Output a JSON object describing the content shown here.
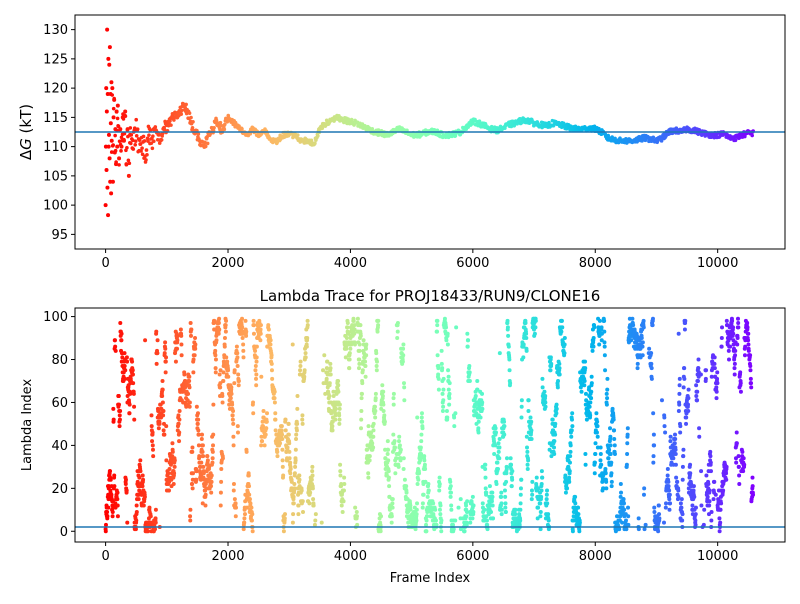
{
  "chart_data": [
    {
      "type": "scatter",
      "title": "",
      "xlabel": "",
      "ylabel_prefix": "Δ",
      "ylabel_var": "G",
      "ylabel_suffix": " (kT)",
      "xlim": [
        -500,
        11100
      ],
      "ylim": [
        92.5,
        132.5
      ],
      "x_ticks": [
        0,
        2000,
        4000,
        6000,
        8000,
        10000
      ],
      "x_tick_labels": [
        "0",
        "2000",
        "4000",
        "6000",
        "8000",
        "10000"
      ],
      "y_ticks": [
        95,
        100,
        105,
        110,
        115,
        120,
        125,
        130
      ],
      "y_tick_labels": [
        "95",
        "100",
        "105",
        "110",
        "115",
        "120",
        "125",
        "130"
      ],
      "hline": 112.5,
      "colormap": "rainbow",
      "trace_points": [
        [
          0,
          100
        ],
        [
          5,
          110
        ],
        [
          10,
          120
        ],
        [
          15,
          106
        ],
        [
          20,
          116
        ],
        [
          25,
          130
        ],
        [
          30,
          103
        ],
        [
          35,
          119
        ],
        [
          40,
          98.3
        ],
        [
          45,
          125
        ],
        [
          50,
          110
        ],
        [
          55,
          112
        ],
        [
          60,
          124
        ],
        [
          65,
          108
        ],
        [
          70,
          127
        ],
        [
          75,
          104
        ],
        [
          80,
          119
        ],
        [
          85,
          114
        ],
        [
          90,
          102
        ],
        [
          95,
          121
        ],
        [
          100,
          111
        ],
        [
          110,
          120
        ],
        [
          120,
          104
        ],
        [
          130,
          115
        ],
        [
          140,
          118
        ],
        [
          150,
          109
        ],
        [
          160,
          113
        ],
        [
          170,
          107
        ],
        [
          180,
          116
        ],
        [
          190,
          110
        ],
        [
          200,
          117
        ],
        [
          220,
          108
        ],
        [
          240,
          113
        ],
        [
          260,
          110
        ],
        [
          280,
          115
        ],
        [
          300,
          111
        ],
        [
          320,
          116
        ],
        [
          340,
          107
        ],
        [
          360,
          113
        ],
        [
          380,
          105
        ],
        [
          400,
          112
        ],
        [
          450,
          110
        ],
        [
          500,
          113
        ],
        [
          550,
          109
        ],
        [
          600,
          111
        ],
        [
          650,
          108
        ],
        [
          700,
          112
        ],
        [
          750,
          111
        ],
        [
          800,
          113
        ],
        [
          850,
          112
        ],
        [
          900,
          111
        ],
        [
          950,
          114
        ],
        [
          1000,
          113
        ],
        [
          1100,
          115
        ],
        [
          1200,
          116
        ],
        [
          1300,
          117
        ],
        [
          1400,
          114
        ],
        [
          1500,
          112
        ],
        [
          1600,
          110
        ],
        [
          1700,
          112
        ],
        [
          1800,
          114
        ],
        [
          1900,
          113
        ],
        [
          2000,
          115
        ],
        [
          2100,
          114
        ],
        [
          2200,
          113
        ],
        [
          2300,
          112
        ],
        [
          2400,
          113
        ],
        [
          2500,
          112
        ],
        [
          2600,
          113
        ],
        [
          2700,
          111
        ],
        [
          2800,
          111
        ],
        [
          2900,
          112
        ],
        [
          3000,
          112
        ],
        [
          3100,
          112
        ],
        [
          3200,
          111
        ],
        [
          3300,
          111
        ],
        [
          3400,
          110.5
        ],
        [
          3500,
          113
        ],
        [
          3600,
          114
        ],
        [
          3700,
          114.5
        ],
        [
          3800,
          115
        ],
        [
          3900,
          114.5
        ],
        [
          4000,
          114.3
        ],
        [
          4100,
          114
        ],
        [
          4200,
          113.5
        ],
        [
          4300,
          113
        ],
        [
          4400,
          112.5
        ],
        [
          4500,
          112.3
        ],
        [
          4600,
          112
        ],
        [
          4700,
          112.5
        ],
        [
          4800,
          113
        ],
        [
          4900,
          112.5
        ],
        [
          5000,
          112
        ],
        [
          5100,
          112
        ],
        [
          5200,
          112.3
        ],
        [
          5300,
          112.6
        ],
        [
          5400,
          112.5
        ],
        [
          5500,
          112
        ],
        [
          5600,
          112
        ],
        [
          5700,
          112.2
        ],
        [
          5800,
          112.5
        ],
        [
          5900,
          113.5
        ],
        [
          6000,
          114.3
        ],
        [
          6100,
          114
        ],
        [
          6200,
          113.5
        ],
        [
          6300,
          113
        ],
        [
          6400,
          112.8
        ],
        [
          6500,
          113.2
        ],
        [
          6600,
          113.8
        ],
        [
          6700,
          114
        ],
        [
          6800,
          114.5
        ],
        [
          6900,
          114.5
        ],
        [
          7000,
          114
        ],
        [
          7100,
          113.8
        ],
        [
          7200,
          113.5
        ],
        [
          7300,
          114
        ],
        [
          7400,
          113.8
        ],
        [
          7500,
          113.5
        ],
        [
          7600,
          113.2
        ],
        [
          7700,
          113
        ],
        [
          7800,
          113
        ],
        [
          7900,
          113.2
        ],
        [
          8000,
          113
        ],
        [
          8100,
          112.5
        ],
        [
          8200,
          111.5
        ],
        [
          8300,
          111.2
        ],
        [
          8400,
          111
        ],
        [
          8500,
          111
        ],
        [
          8600,
          111
        ],
        [
          8700,
          111.2
        ],
        [
          8800,
          111.5
        ],
        [
          8900,
          111.3
        ],
        [
          9000,
          111
        ],
        [
          9100,
          111.5
        ],
        [
          9200,
          112.5
        ],
        [
          9300,
          112.8
        ],
        [
          9400,
          112.5
        ],
        [
          9500,
          113
        ],
        [
          9600,
          112.8
        ],
        [
          9700,
          112.5
        ],
        [
          9800,
          112.2
        ],
        [
          9900,
          112
        ],
        [
          10000,
          112
        ],
        [
          10100,
          112.2
        ],
        [
          10200,
          111.5
        ],
        [
          10300,
          111.5
        ],
        [
          10400,
          112
        ],
        [
          10500,
          112.3
        ],
        [
          10580,
          112.3
        ]
      ]
    },
    {
      "type": "scatter",
      "title": "Lambda Trace for PROJ18433/RUN9/CLONE16",
      "xlabel": "Frame Index",
      "ylabel": "Lambda Index",
      "xlim": [
        -500,
        11100
      ],
      "ylim": [
        -5,
        104
      ],
      "x_ticks": [
        0,
        2000,
        4000,
        6000,
        8000,
        10000
      ],
      "x_tick_labels": [
        "0",
        "2000",
        "4000",
        "6000",
        "8000",
        "10000"
      ],
      "y_ticks": [
        0,
        20,
        40,
        60,
        80,
        100
      ],
      "y_tick_labels": [
        "0",
        "20",
        "40",
        "60",
        "80",
        "100"
      ],
      "hline": 2,
      "colormap": "rainbow",
      "frame_count": 10580,
      "lambda_max": 99,
      "sparse_frame_ranges": [
        [
          3400,
          3600
        ],
        [
          5700,
          5850
        ],
        [
          8800,
          8900
        ],
        [
          9050,
          9150
        ],
        [
          9700,
          9800
        ]
      ]
    }
  ]
}
